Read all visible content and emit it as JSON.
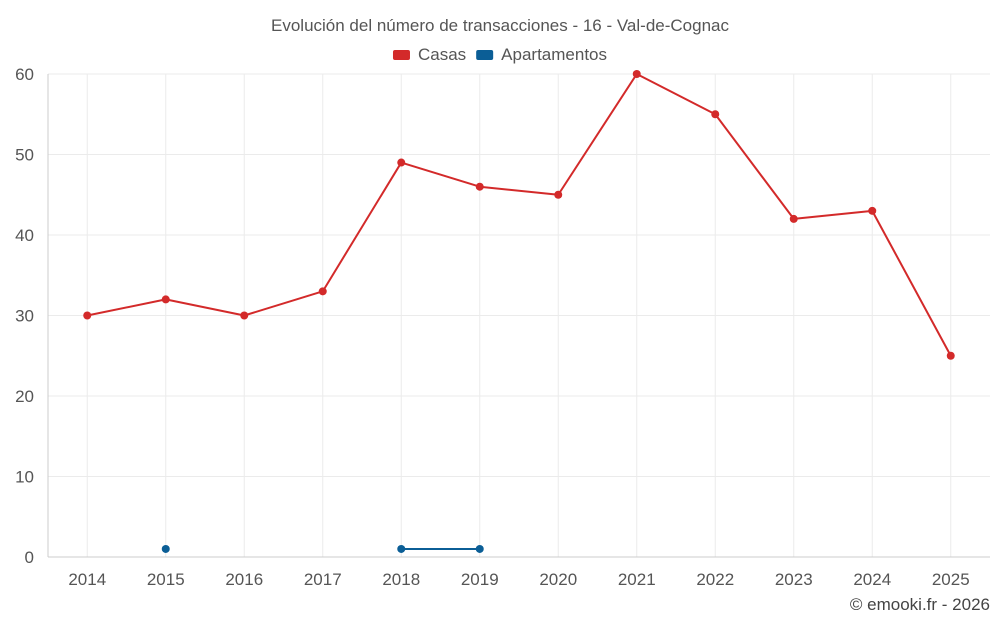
{
  "chart_data": {
    "type": "line",
    "title": "Evolución del número de transacciones - 16 - Val-de-Cognac",
    "categories": [
      "2014",
      "2015",
      "2016",
      "2017",
      "2018",
      "2019",
      "2020",
      "2021",
      "2022",
      "2023",
      "2024",
      "2025"
    ],
    "series": [
      {
        "name": "Casas",
        "color": "#d32a2a",
        "values": [
          30,
          32,
          30,
          33,
          49,
          46,
          45,
          60,
          55,
          42,
          43,
          25
        ]
      },
      {
        "name": "Apartamentos",
        "color": "#0b5e96",
        "values": [
          null,
          1,
          null,
          null,
          1,
          1,
          null,
          null,
          null,
          null,
          null,
          null
        ]
      }
    ],
    "y_ticks": [
      0,
      10,
      20,
      30,
      40,
      50,
      60
    ],
    "ylim": [
      0,
      60
    ],
    "grid": true,
    "legend_position": "top-center"
  },
  "credit": "© emooki.fr - 2026"
}
